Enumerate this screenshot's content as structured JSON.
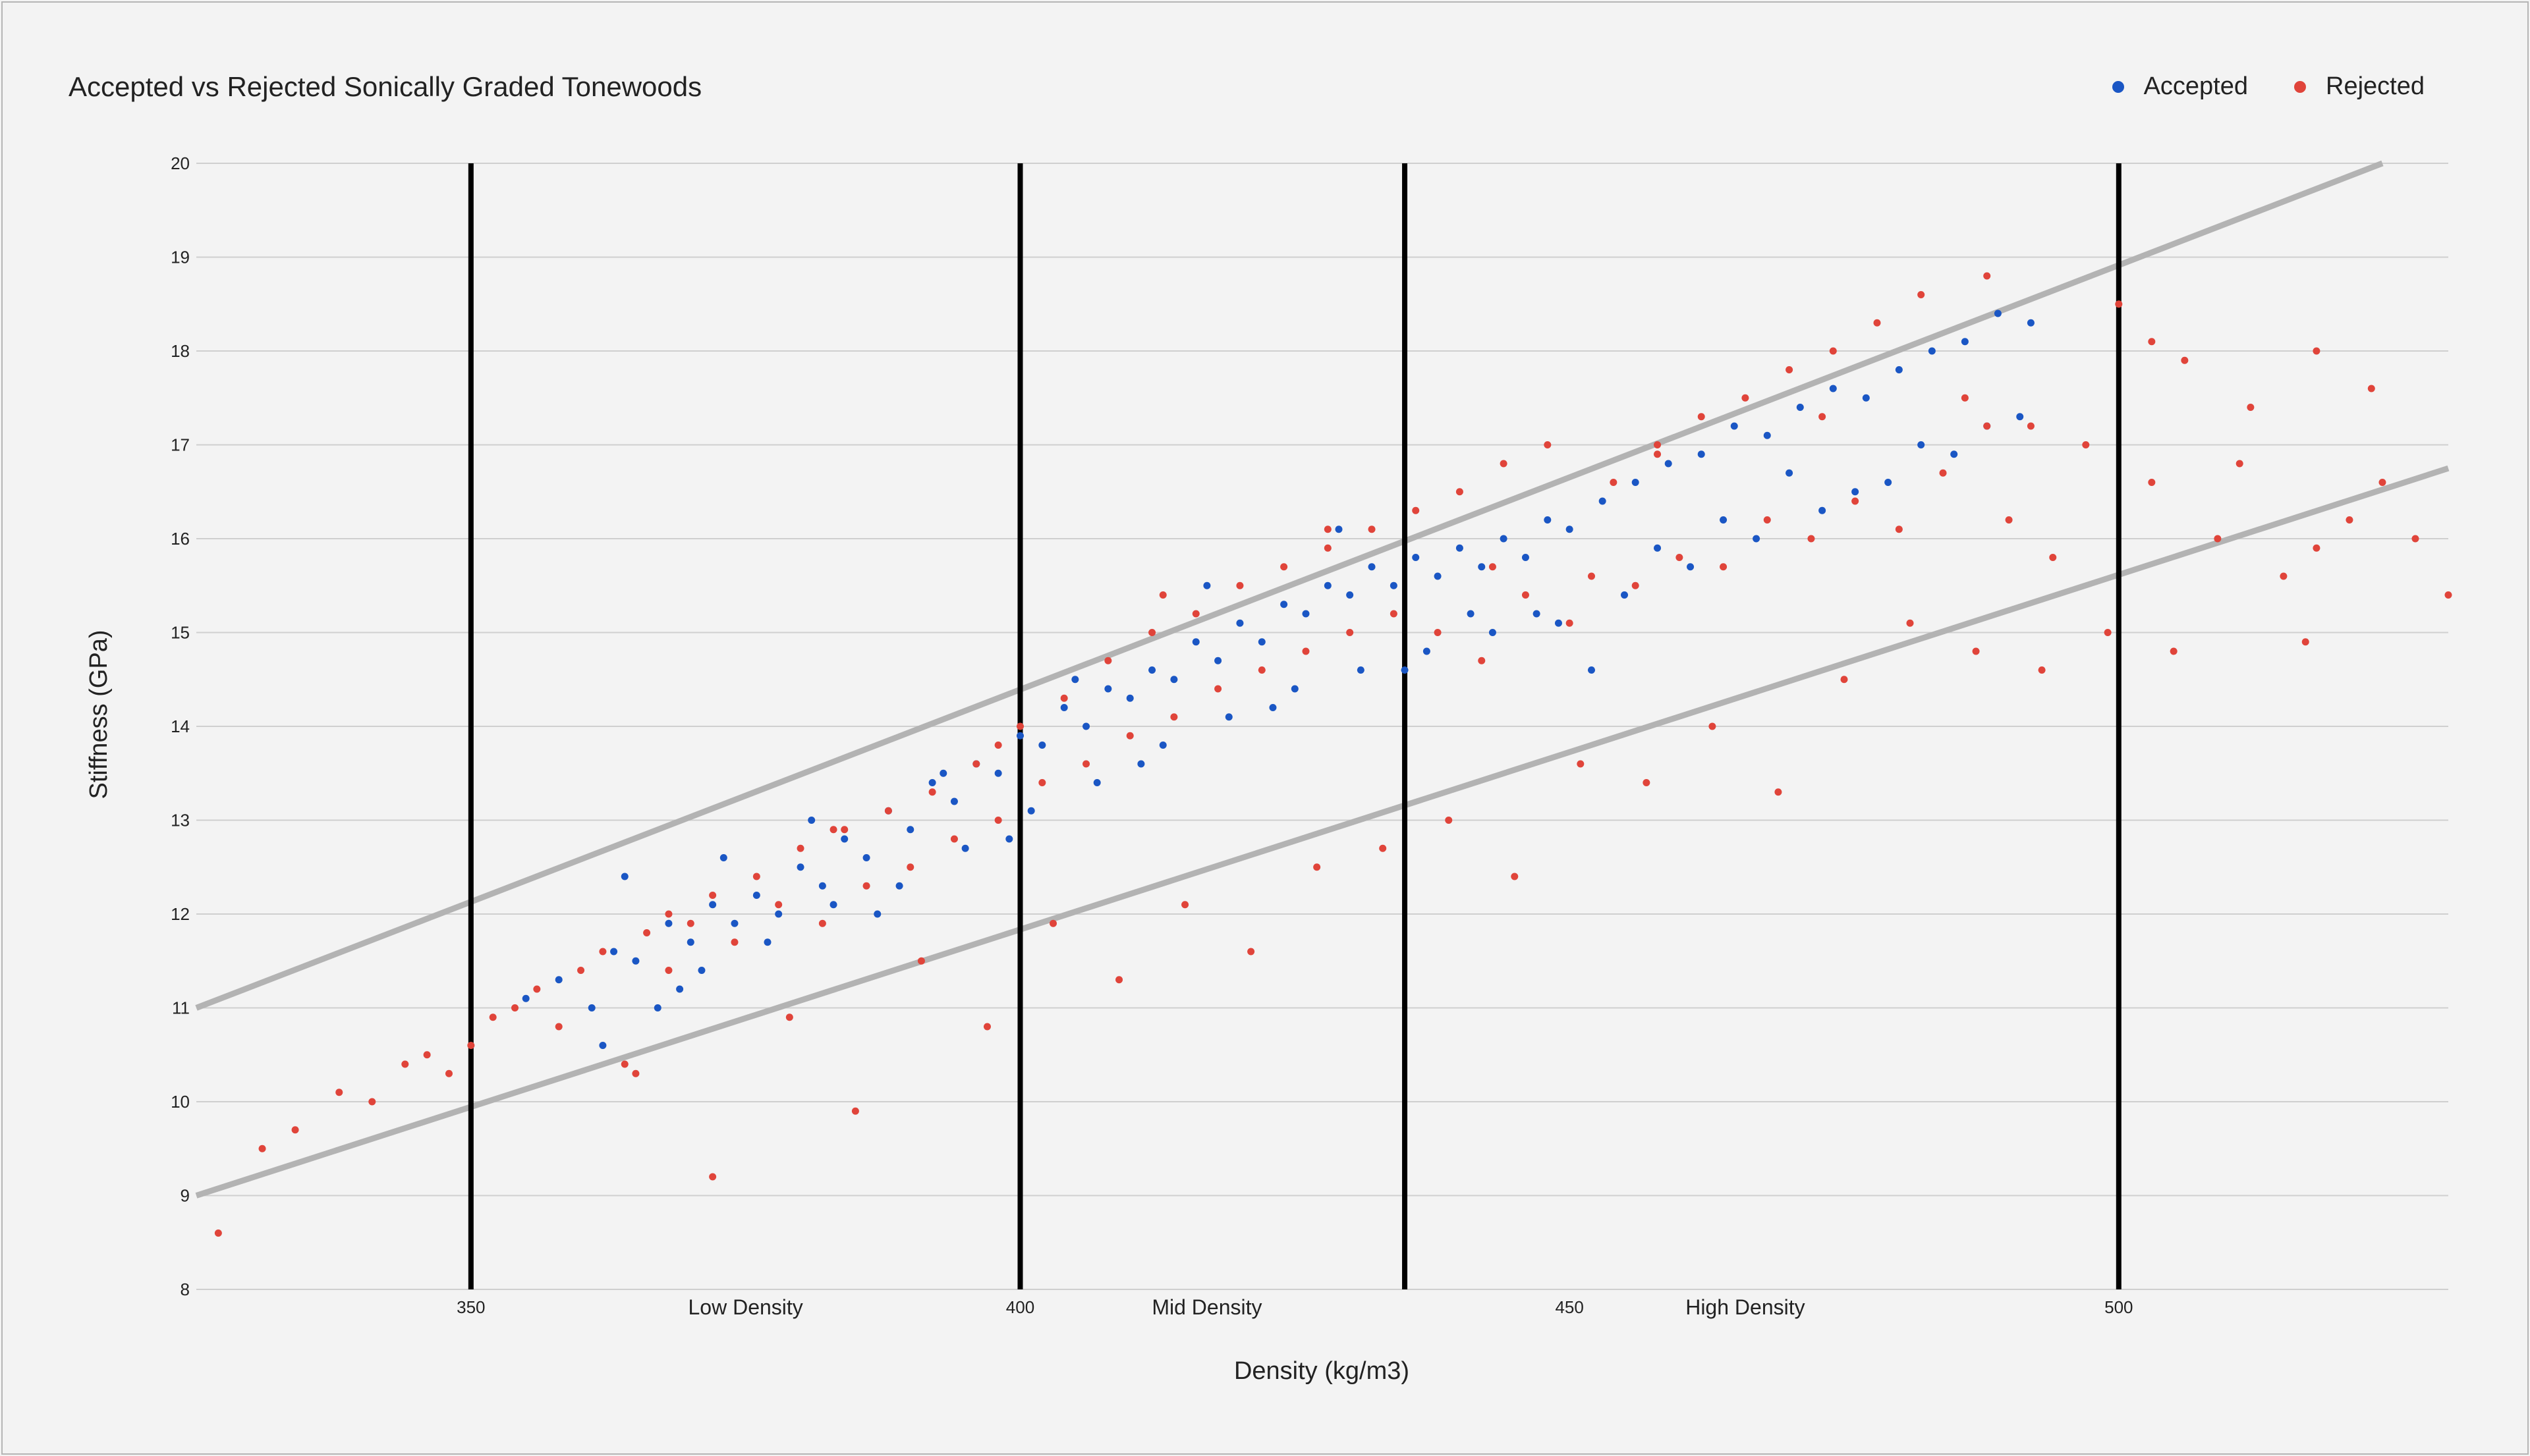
{
  "chart_data": {
    "type": "scatter",
    "title": "Accepted vs Rejected Sonically Graded Tonewoods",
    "xlabel": "Density (kg/m3)",
    "ylabel": "Stiffness (GPa)",
    "xlim": [
      325,
      530
    ],
    "ylim": [
      8,
      20
    ],
    "x_ticks": [
      "350",
      "400",
      "450",
      "500"
    ],
    "y_ticks": [
      "8",
      "9",
      "10",
      "11",
      "12",
      "13",
      "14",
      "15",
      "16",
      "17",
      "18",
      "19",
      "20"
    ],
    "grid": "horizontal",
    "legend_position": "top-right",
    "colors": {
      "accepted": "#1a56c4",
      "rejected": "#e0443a",
      "band": "#b3b3b3",
      "divider": "#000000",
      "grid": "#cfcfcf"
    },
    "dividers": [
      350,
      400,
      435,
      500
    ],
    "region_labels": [
      {
        "label": "Low Density",
        "x": 375
      },
      {
        "label": "Mid Density",
        "x": 417
      },
      {
        "label": "High Density",
        "x": 466
      }
    ],
    "bands": [
      {
        "x": [
          325,
          524
        ],
        "y": [
          11.0,
          20.0
        ]
      },
      {
        "x": [
          325,
          530
        ],
        "y": [
          9.0,
          16.75
        ]
      }
    ],
    "series": [
      {
        "name": "Accepted",
        "x": [
          355,
          358,
          361,
          363,
          365,
          368,
          370,
          372,
          374,
          376,
          378,
          380,
          382,
          384,
          386,
          388,
          390,
          392,
          394,
          396,
          398,
          400,
          402,
          404,
          406,
          408,
          410,
          412,
          414,
          416,
          418,
          420,
          422,
          424,
          426,
          428,
          430,
          432,
          434,
          436,
          438,
          440,
          442,
          444,
          446,
          448,
          450,
          453,
          456,
          459,
          462,
          465,
          468,
          471,
          474,
          477,
          480,
          483,
          486,
          489,
          492,
          362,
          367,
          371,
          377,
          383,
          389,
          395,
          401,
          407,
          413,
          419,
          425,
          431,
          437,
          443,
          449,
          455,
          461,
          467,
          473,
          479,
          485,
          491,
          364,
          373,
          381,
          393,
          405,
          417,
          429,
          441,
          452,
          464,
          476,
          488,
          369,
          387,
          399,
          411,
          423,
          435,
          447,
          458,
          470,
          482
        ],
        "y": [
          11.1,
          11.3,
          11.0,
          11.6,
          11.5,
          11.9,
          11.7,
          12.1,
          11.9,
          12.2,
          12.0,
          12.5,
          12.3,
          12.8,
          12.6,
          13.1,
          12.9,
          13.4,
          13.2,
          13.6,
          13.5,
          13.9,
          13.8,
          14.2,
          14.0,
          14.4,
          14.3,
          14.6,
          14.5,
          14.9,
          14.7,
          15.1,
          14.9,
          15.3,
          15.2,
          15.5,
          15.4,
          15.7,
          15.5,
          15.8,
          15.6,
          15.9,
          15.7,
          16.0,
          15.8,
          16.2,
          16.1,
          16.4,
          16.6,
          16.8,
          16.9,
          17.2,
          17.1,
          17.4,
          17.6,
          17.5,
          17.8,
          18.0,
          18.1,
          18.4,
          18.3,
          10.6,
          11.0,
          11.4,
          11.7,
          12.1,
          12.3,
          12.7,
          13.1,
          13.4,
          13.8,
          14.1,
          14.4,
          14.6,
          14.8,
          15.0,
          15.1,
          15.4,
          15.7,
          16.0,
          16.3,
          16.6,
          16.9,
          17.3,
          12.4,
          12.6,
          13.0,
          13.5,
          14.5,
          15.5,
          16.1,
          15.2,
          14.6,
          16.2,
          16.5,
          17.2,
          11.2,
          12.0,
          12.8,
          13.6,
          14.2,
          14.6,
          15.2,
          15.9,
          16.7,
          17.0
        ]
      },
      {
        "name": "Rejected",
        "x": [
          327,
          331,
          334,
          338,
          341,
          344,
          346,
          348,
          350,
          352,
          354,
          356,
          358,
          360,
          362,
          364,
          366,
          368,
          370,
          372,
          374,
          376,
          378,
          380,
          382,
          384,
          386,
          388,
          390,
          392,
          394,
          396,
          398,
          400,
          402,
          404,
          406,
          408,
          410,
          412,
          414,
          416,
          418,
          420,
          422,
          424,
          426,
          428,
          430,
          432,
          434,
          436,
          438,
          440,
          442,
          444,
          446,
          448,
          450,
          452,
          454,
          456,
          458,
          460,
          462,
          464,
          466,
          468,
          470,
          472,
          474,
          476,
          478,
          480,
          482,
          484,
          486,
          488,
          490,
          492,
          494,
          497,
          500,
          503,
          506,
          509,
          512,
          515,
          518,
          521,
          524,
          527,
          530,
          365,
          372,
          379,
          385,
          391,
          397,
          403,
          409,
          415,
          421,
          427,
          433,
          439,
          445,
          451,
          457,
          463,
          469,
          475,
          481,
          487,
          493,
          499,
          505,
          511,
          517,
          523,
          368,
          383,
          398,
          413,
          428,
          443,
          458,
          473,
          488,
          503,
          518
        ],
        "y": [
          8.6,
          9.5,
          9.7,
          10.1,
          10.0,
          10.4,
          10.5,
          10.3,
          10.6,
          10.9,
          11.0,
          11.2,
          10.8,
          11.4,
          11.6,
          10.4,
          11.8,
          12.0,
          11.9,
          12.2,
          11.7,
          12.4,
          12.1,
          12.7,
          11.9,
          12.9,
          12.3,
          13.1,
          12.5,
          13.3,
          12.8,
          13.6,
          13.0,
          14.0,
          13.4,
          14.3,
          13.6,
          14.7,
          13.9,
          15.0,
          14.1,
          15.2,
          14.4,
          15.5,
          14.6,
          15.7,
          14.8,
          15.9,
          15.0,
          16.1,
          15.2,
          16.3,
          15.0,
          16.5,
          14.7,
          16.8,
          15.4,
          17.0,
          15.1,
          15.6,
          16.6,
          15.5,
          17.0,
          15.8,
          17.3,
          15.7,
          17.5,
          16.2,
          17.8,
          16.0,
          18.0,
          16.4,
          18.3,
          16.1,
          18.6,
          16.7,
          17.5,
          18.8,
          16.2,
          17.2,
          15.8,
          17.0,
          18.5,
          16.6,
          17.9,
          16.0,
          17.4,
          15.6,
          15.9,
          16.2,
          16.6,
          16.0,
          15.4,
          10.3,
          9.2,
          10.9,
          9.9,
          11.5,
          10.8,
          11.9,
          11.3,
          12.1,
          11.6,
          12.5,
          12.7,
          13.0,
          12.4,
          13.6,
          13.4,
          14.0,
          13.3,
          14.5,
          15.1,
          14.8,
          14.6,
          15.0,
          14.8,
          16.8,
          14.9,
          17.6,
          11.4,
          12.9,
          13.8,
          15.4,
          16.1,
          15.7,
          16.9,
          17.3,
          17.2,
          18.1,
          18.0
        ]
      }
    ]
  }
}
